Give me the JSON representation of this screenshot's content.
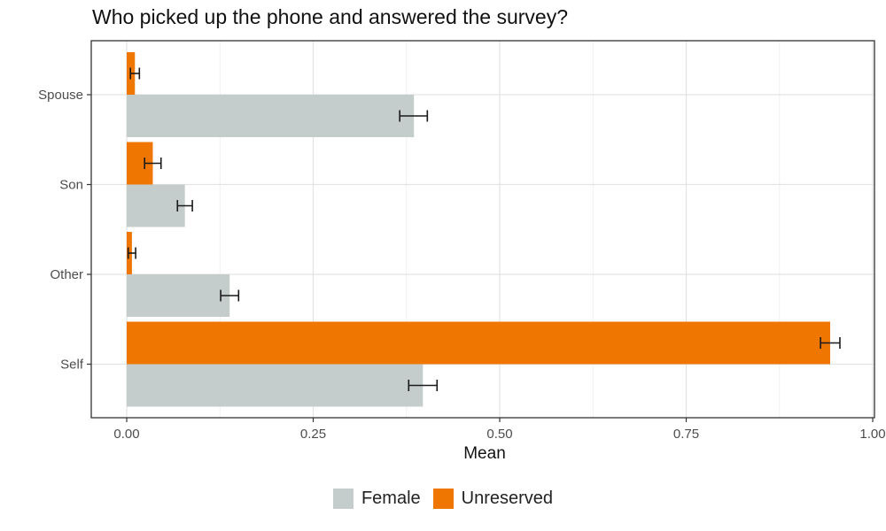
{
  "chart_data": {
    "type": "bar",
    "orientation": "horizontal",
    "title": "Who picked up the phone and answered the survey?",
    "xlabel": "Mean",
    "ylabel": "",
    "xlim": [
      0,
      1
    ],
    "x_ticks": [
      "0.00",
      "0.25",
      "0.50",
      "0.75",
      "1.00"
    ],
    "x_tick_values": [
      0,
      0.25,
      0.5,
      0.75,
      1.0
    ],
    "categories": [
      "Spouse",
      "Son",
      "Other",
      "Self"
    ],
    "series": [
      {
        "name": "Female",
        "color": "#c4cdcc",
        "values": [
          0.385,
          0.078,
          0.138,
          0.397
        ],
        "error_low": [
          0.366,
          0.068,
          0.126,
          0.378
        ],
        "error_high": [
          0.403,
          0.088,
          0.15,
          0.416
        ]
      },
      {
        "name": "Unreserved",
        "color": "#ee7601",
        "values": [
          0.011,
          0.035,
          0.007,
          0.943
        ],
        "error_low": [
          0.005,
          0.024,
          0.002,
          0.93
        ],
        "error_high": [
          0.017,
          0.046,
          0.012,
          0.956
        ]
      }
    ],
    "grid": true,
    "legend_position": "bottom"
  }
}
